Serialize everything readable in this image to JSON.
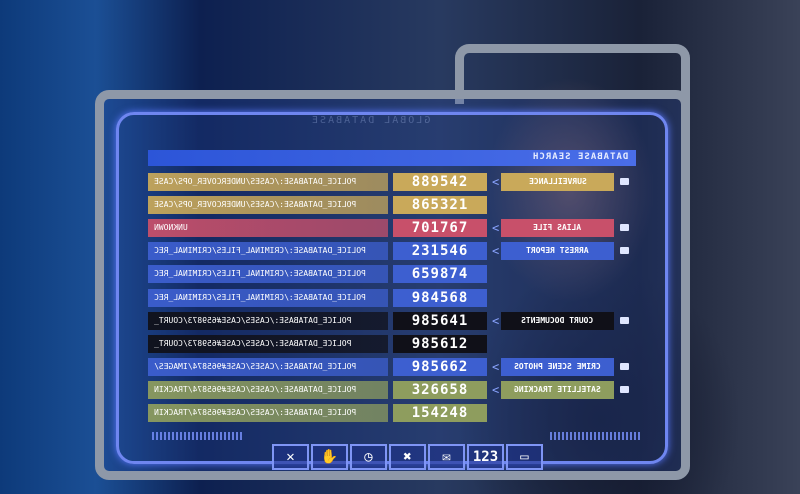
{
  "window": {
    "title": "GLOBAL DATABASE",
    "header": "DATABASE SEARCH"
  },
  "colors": {
    "yellow": "#c9a95a",
    "red": "#c8506a",
    "blue": "#3d5fd0",
    "black": "#101018",
    "green": "#8e9d5e",
    "frame": "#8e98a8",
    "accent": "#6f86f0"
  },
  "rows": [
    {
      "path": "POLICE_DATABASE:/CASES/UNDERCOVER_OPS/CASE",
      "id": "889542",
      "category": "SURVEILLANCE",
      "color": "yellow",
      "icon": "folder-icon"
    },
    {
      "path": "POLICE_DATABASE:/CASES/UNDERCOVER_OPS/CASE",
      "id": "865321",
      "color": "yellow"
    },
    {
      "path": "UNKNOWN",
      "id": "701767",
      "category": "ALIAS FILE",
      "color": "red",
      "icon": "document-icon"
    },
    {
      "path": "POLICE_DATABASE:/CRIMINAL_FILES/CRIMINAL_REC",
      "id": "231546",
      "category": "ARREST REPORT",
      "color": "blue",
      "icon": "folder-icon"
    },
    {
      "path": "POLICE_DATABASE:/CRIMINAL_FILES/CRIMINAL_REC",
      "id": "659874",
      "color": "blue"
    },
    {
      "path": "POLICE_DATABASE:/CRIMINAL_FILES/CRIMINAL_REC",
      "id": "984568",
      "color": "blue"
    },
    {
      "path": "POLICE_DATABASE:/CASES/CASE#659873/COURT_",
      "id": "985641",
      "category": "COURT DOCUMENTS",
      "color": "black",
      "icon": "folder-icon"
    },
    {
      "path": "POLICE_DATABASE:/CASES/CASE#659873/COURT_",
      "id": "985612",
      "color": "black"
    },
    {
      "path": "POLICE_DATABASE:/CASES/CASE#965874/IMAGES/",
      "id": "985662",
      "category": "CRIME SCENE PHOTOS",
      "color": "blue",
      "icon": "document-icon"
    },
    {
      "path": "POLICE_DATABASE:/CASES/CASE#965874/TRACKIN",
      "id": "326658",
      "category": "SATELLITE TRACKING",
      "color": "green",
      "icon": "folder-icon"
    },
    {
      "path": "POLICE_DATABASE:/CASES/CASE#965874/TRACKIN",
      "id": "154248",
      "color": "green"
    }
  ],
  "toolbar": [
    {
      "name": "close-icon",
      "glyph": "✕"
    },
    {
      "name": "hand-icon",
      "glyph": "✋"
    },
    {
      "name": "clock-icon",
      "glyph": "◷"
    },
    {
      "name": "tools-icon",
      "glyph": "✖"
    },
    {
      "name": "mail-icon",
      "glyph": "✉"
    },
    {
      "name": "keypad-icon",
      "glyph": "123"
    },
    {
      "name": "folder-icon",
      "glyph": "▭"
    }
  ]
}
